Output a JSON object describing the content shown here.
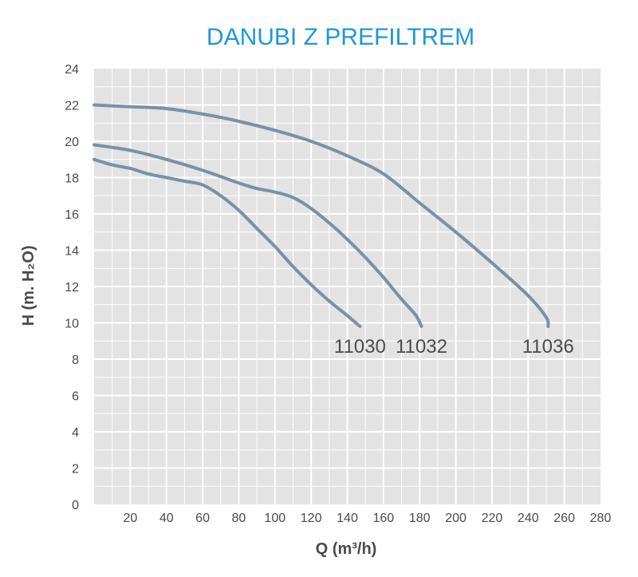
{
  "chart_data": {
    "type": "line",
    "title": "DANUBI Z PREFILTREM",
    "xlabel": "Q (m³/h)",
    "ylabel": "H (m. H₂O)",
    "xlim": [
      0,
      280
    ],
    "ylim": [
      0,
      24
    ],
    "x_ticks": [
      20,
      40,
      60,
      80,
      100,
      120,
      140,
      160,
      180,
      200,
      220,
      240,
      260,
      280
    ],
    "y_ticks": [
      0,
      2,
      4,
      6,
      8,
      10,
      12,
      14,
      16,
      18,
      20,
      22,
      24
    ],
    "grid": true,
    "legend": "none",
    "series": [
      {
        "name": "11030",
        "points": [
          [
            0,
            19.0
          ],
          [
            10,
            18.7
          ],
          [
            20,
            18.5
          ],
          [
            30,
            18.2
          ],
          [
            40,
            18.0
          ],
          [
            50,
            17.8
          ],
          [
            60,
            17.6
          ],
          [
            70,
            17.0
          ],
          [
            80,
            16.2
          ],
          [
            90,
            15.2
          ],
          [
            100,
            14.2
          ],
          [
            110,
            13.1
          ],
          [
            120,
            12.1
          ],
          [
            130,
            11.2
          ],
          [
            140,
            10.4
          ],
          [
            147,
            9.8
          ]
        ]
      },
      {
        "name": "11032",
        "points": [
          [
            0,
            19.8
          ],
          [
            20,
            19.5
          ],
          [
            40,
            19.0
          ],
          [
            60,
            18.4
          ],
          [
            80,
            17.7
          ],
          [
            90,
            17.4
          ],
          [
            100,
            17.2
          ],
          [
            110,
            16.9
          ],
          [
            120,
            16.3
          ],
          [
            130,
            15.5
          ],
          [
            140,
            14.6
          ],
          [
            150,
            13.6
          ],
          [
            160,
            12.5
          ],
          [
            170,
            11.3
          ],
          [
            178,
            10.4
          ],
          [
            181,
            9.8
          ]
        ]
      },
      {
        "name": "11036",
        "points": [
          [
            0,
            22.0
          ],
          [
            20,
            21.9
          ],
          [
            40,
            21.8
          ],
          [
            60,
            21.5
          ],
          [
            80,
            21.1
          ],
          [
            100,
            20.6
          ],
          [
            120,
            20.0
          ],
          [
            140,
            19.2
          ],
          [
            160,
            18.2
          ],
          [
            180,
            16.6
          ],
          [
            200,
            15.0
          ],
          [
            220,
            13.3
          ],
          [
            240,
            11.5
          ],
          [
            250,
            10.3
          ],
          [
            251,
            9.8
          ]
        ]
      }
    ],
    "colors": {
      "line": "#7891a5",
      "title": "#1f97d8",
      "plot_bg": "#e3e3e3",
      "grid": "#ffffff",
      "text": "#4a4a4a"
    }
  }
}
